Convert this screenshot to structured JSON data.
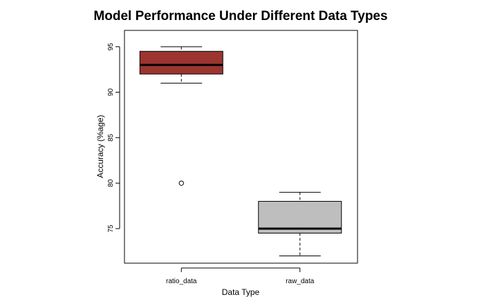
{
  "chart_data": {
    "type": "boxplot",
    "title": "Model Performance Under Different Data Types",
    "xlabel": "Data Type",
    "ylabel": "Accuracy (%age)",
    "ylim": [
      71.2,
      96.8
    ],
    "yticks": [
      75,
      80,
      85,
      90,
      95
    ],
    "grid": false,
    "categories": [
      "ratio_data",
      "raw_data"
    ],
    "boxes": [
      {
        "category": "ratio_data",
        "min": 91,
        "q1": 92,
        "median": 93,
        "q3": 94.5,
        "max": 95,
        "outliers": [
          80
        ],
        "fill": "#9b3530"
      },
      {
        "category": "raw_data",
        "min": 72,
        "q1": 74.5,
        "median": 75,
        "q3": 78,
        "max": 79,
        "outliers": [],
        "fill": "#bebebe"
      }
    ]
  }
}
